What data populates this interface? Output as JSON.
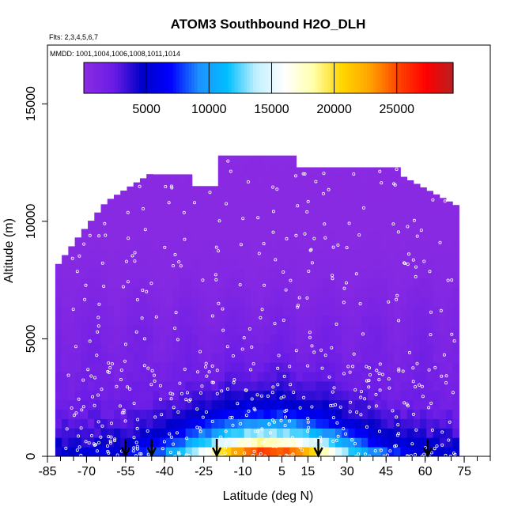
{
  "chart_data": {
    "type": "heatmap",
    "title": "ATOM3 Southbound H2O_DLH",
    "note_flights": "Flts: 2,3,4,5,6,7",
    "note_dates": "MMDD: 1001,1004,1006,1008,1011,1014",
    "xlabel": "Latitude (deg N)",
    "ylabel": "Altitude (m)",
    "xlim": [
      -85,
      85
    ],
    "ylim": [
      0,
      17500
    ],
    "x_ticks": [
      -85,
      -70,
      -55,
      -40,
      -25,
      -10,
      5,
      15,
      30,
      45,
      60,
      75
    ],
    "x_minor_step": 5,
    "y_ticks": [
      0,
      5000,
      10000,
      15000
    ],
    "colorbar": {
      "range": [
        0,
        29500
      ],
      "ticks": [
        5000,
        10000,
        15000,
        20000,
        25000
      ],
      "colors": [
        "#8a2be2",
        "#6a1ce6",
        "#0000c8",
        "#0000ff",
        "#1e90ff",
        "#00bfff",
        "#bfefff",
        "#ffffff",
        "#ffffb0",
        "#ffd700",
        "#ffa500",
        "#ff4500",
        "#ff0000",
        "#b22222"
      ]
    },
    "flight_latitude_markers": [
      -55,
      -45,
      -20,
      19,
      61
    ],
    "grid": false,
    "legend": "colorbar top"
  }
}
